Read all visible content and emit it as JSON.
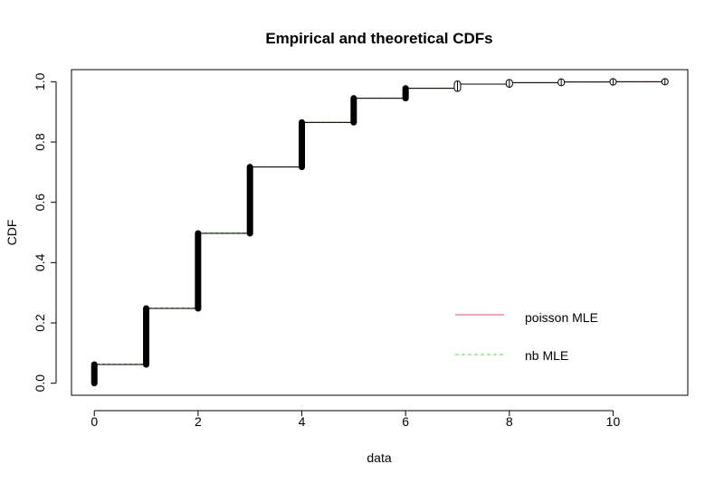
{
  "chart_data": {
    "type": "line",
    "title": "Empirical and theoretical CDFs",
    "xlabel": "data",
    "ylabel": "CDF",
    "xlim": [
      -0.44,
      11.44
    ],
    "ylim": [
      -0.04,
      1.04
    ],
    "xticks": [
      0,
      2,
      4,
      6,
      8,
      10
    ],
    "yticks": [
      0.0,
      0.2,
      0.4,
      0.6,
      0.8,
      1.0
    ],
    "xtick_labels": [
      "0",
      "2",
      "4",
      "6",
      "8",
      "10"
    ],
    "ytick_labels": [
      "0.0",
      "0.2",
      "0.4",
      "0.6",
      "0.8",
      "1.0"
    ],
    "empirical": {
      "x": [
        0,
        1,
        2,
        3,
        4,
        5,
        6,
        7,
        8,
        9,
        10,
        11
      ],
      "cdf_before": [
        0.0,
        0.062,
        0.248,
        0.497,
        0.717,
        0.865,
        0.945,
        0.978,
        0.992,
        0.997,
        0.999,
        1.0
      ],
      "cdf_after": [
        0.062,
        0.248,
        0.497,
        0.717,
        0.865,
        0.945,
        0.978,
        0.992,
        0.997,
        0.999,
        1.0,
        1.0
      ]
    },
    "series": [
      {
        "name": "poisson MLE",
        "color": "#DF536B",
        "style": "solid",
        "x": [
          0,
          1,
          2,
          3,
          4,
          5,
          6,
          7,
          8,
          9,
          10,
          11
        ],
        "cdf": [
          0.062,
          0.248,
          0.497,
          0.717,
          0.865,
          0.945,
          0.978,
          0.992,
          0.997,
          0.999,
          1.0,
          1.0
        ]
      },
      {
        "name": "nb MLE",
        "color": "#61D04F",
        "style": "dashed",
        "x": [
          0,
          1,
          2,
          3,
          4,
          5,
          6,
          7,
          8,
          9,
          10,
          11
        ],
        "cdf": [
          0.064,
          0.25,
          0.499,
          0.718,
          0.866,
          0.946,
          0.979,
          0.992,
          0.997,
          0.999,
          1.0,
          1.0
        ]
      }
    ],
    "legend_position": "bottom-right",
    "grid": false
  }
}
